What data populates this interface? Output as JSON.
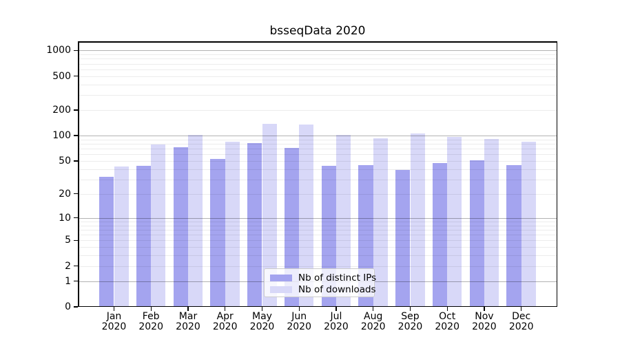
{
  "chart_data": {
    "type": "bar",
    "title": "bsseqData 2020",
    "scale": "log10(x+1)",
    "categories": [
      "Jan",
      "Feb",
      "Mar",
      "Apr",
      "May",
      "Jun",
      "Jul",
      "Aug",
      "Sep",
      "Oct",
      "Nov",
      "Dec"
    ],
    "x_year_label": "2020",
    "series": [
      {
        "name": "Nb of distinct IPs",
        "color": "#a4a4ef",
        "values": [
          32,
          44,
          73,
          53,
          81,
          71,
          44,
          45,
          39,
          47,
          51,
          45
        ]
      },
      {
        "name": "Nb of downloads",
        "color": "#d8d8f8",
        "values": [
          43,
          79,
          102,
          85,
          137,
          136,
          102,
          93,
          107,
          97,
          91,
          85
        ]
      }
    ],
    "y_ticks": [
      0,
      1,
      2,
      5,
      10,
      20,
      50,
      100,
      200,
      500,
      1000
    ],
    "y_major_gridlines": [
      1,
      10,
      100,
      1000
    ],
    "ylim": [
      0,
      1400
    ],
    "grid": "major+minor, drawn over bars",
    "legend_position": "bottom-center",
    "colors": {
      "major_grid": "#b3b3b3",
      "minor_grid": "#ebebeb",
      "spine": "#000000",
      "background": "#ffffff"
    }
  }
}
